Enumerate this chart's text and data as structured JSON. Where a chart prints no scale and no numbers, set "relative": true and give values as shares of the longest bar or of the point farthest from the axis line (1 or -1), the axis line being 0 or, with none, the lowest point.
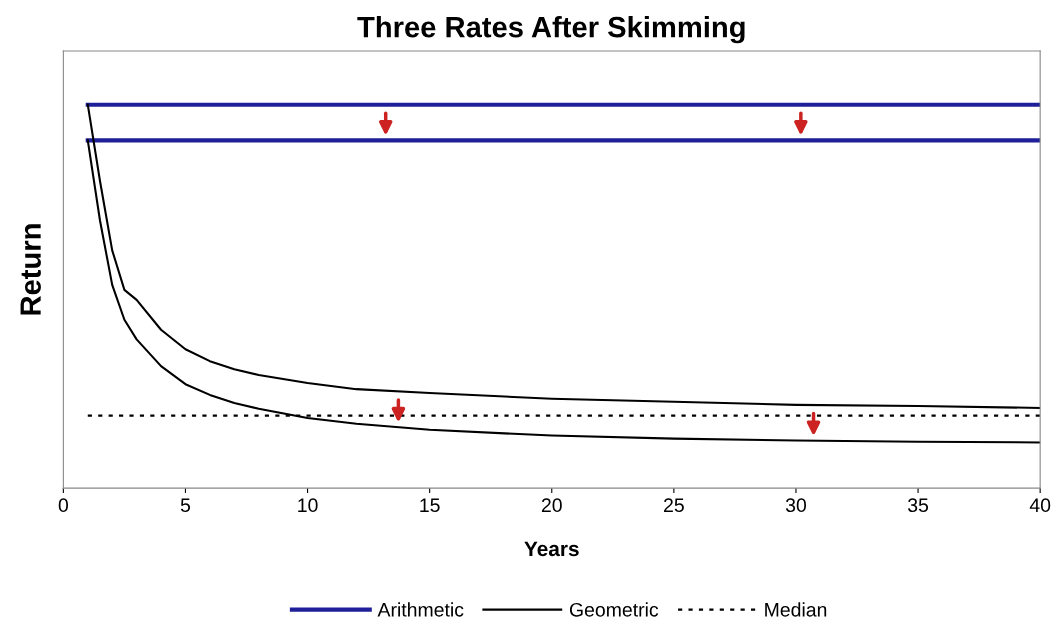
{
  "chart_data": {
    "type": "line",
    "title": "Three Rates After Skimming",
    "xlabel": "Years",
    "ylabel": "Return",
    "relative": true,
    "xlim": [
      0,
      40
    ],
    "xticks": [
      0,
      5,
      10,
      15,
      20,
      25,
      30,
      35,
      40
    ],
    "tick_labels": "x",
    "legend": "bottom",
    "grid": false,
    "series": [
      {
        "name": "Arithmetic",
        "color": "#1f1f99",
        "x": [
          1,
          40
        ],
        "values": [
          1,
          1
        ]
      },
      {
        "color": "#1f1f99",
        "x": [
          1,
          40
        ],
        "values": [
          0.907,
          0.907
        ]
      },
      {
        "name": "Geometric",
        "color": "#000000",
        "x": [
          1,
          1.5,
          2,
          2.5,
          3,
          4,
          5,
          6,
          7,
          8,
          10,
          12,
          15,
          20,
          25,
          30,
          35,
          40
        ],
        "values": [
          1,
          0.801,
          0.62,
          0.517,
          0.491,
          0.413,
          0.362,
          0.331,
          0.31,
          0.295,
          0.274,
          0.258,
          0.248,
          0.233,
          0.225,
          0.217,
          0.214,
          0.209
        ]
      },
      {
        "color": "#000000",
        "x": [
          1,
          1.5,
          2,
          2.5,
          3,
          4,
          5,
          6,
          7,
          8,
          10,
          12,
          15,
          20,
          25,
          30,
          35,
          40
        ],
        "values": [
          0.907,
          0.698,
          0.53,
          0.439,
          0.388,
          0.318,
          0.271,
          0.243,
          0.222,
          0.207,
          0.183,
          0.168,
          0.152,
          0.137,
          0.129,
          0.124,
          0.121,
          0.119
        ]
      },
      {
        "name": "Median",
        "color": "#000000",
        "line_style": "dotted",
        "x": [
          1,
          40
        ],
        "values": [
          0.189,
          0.189
        ]
      }
    ]
  }
}
